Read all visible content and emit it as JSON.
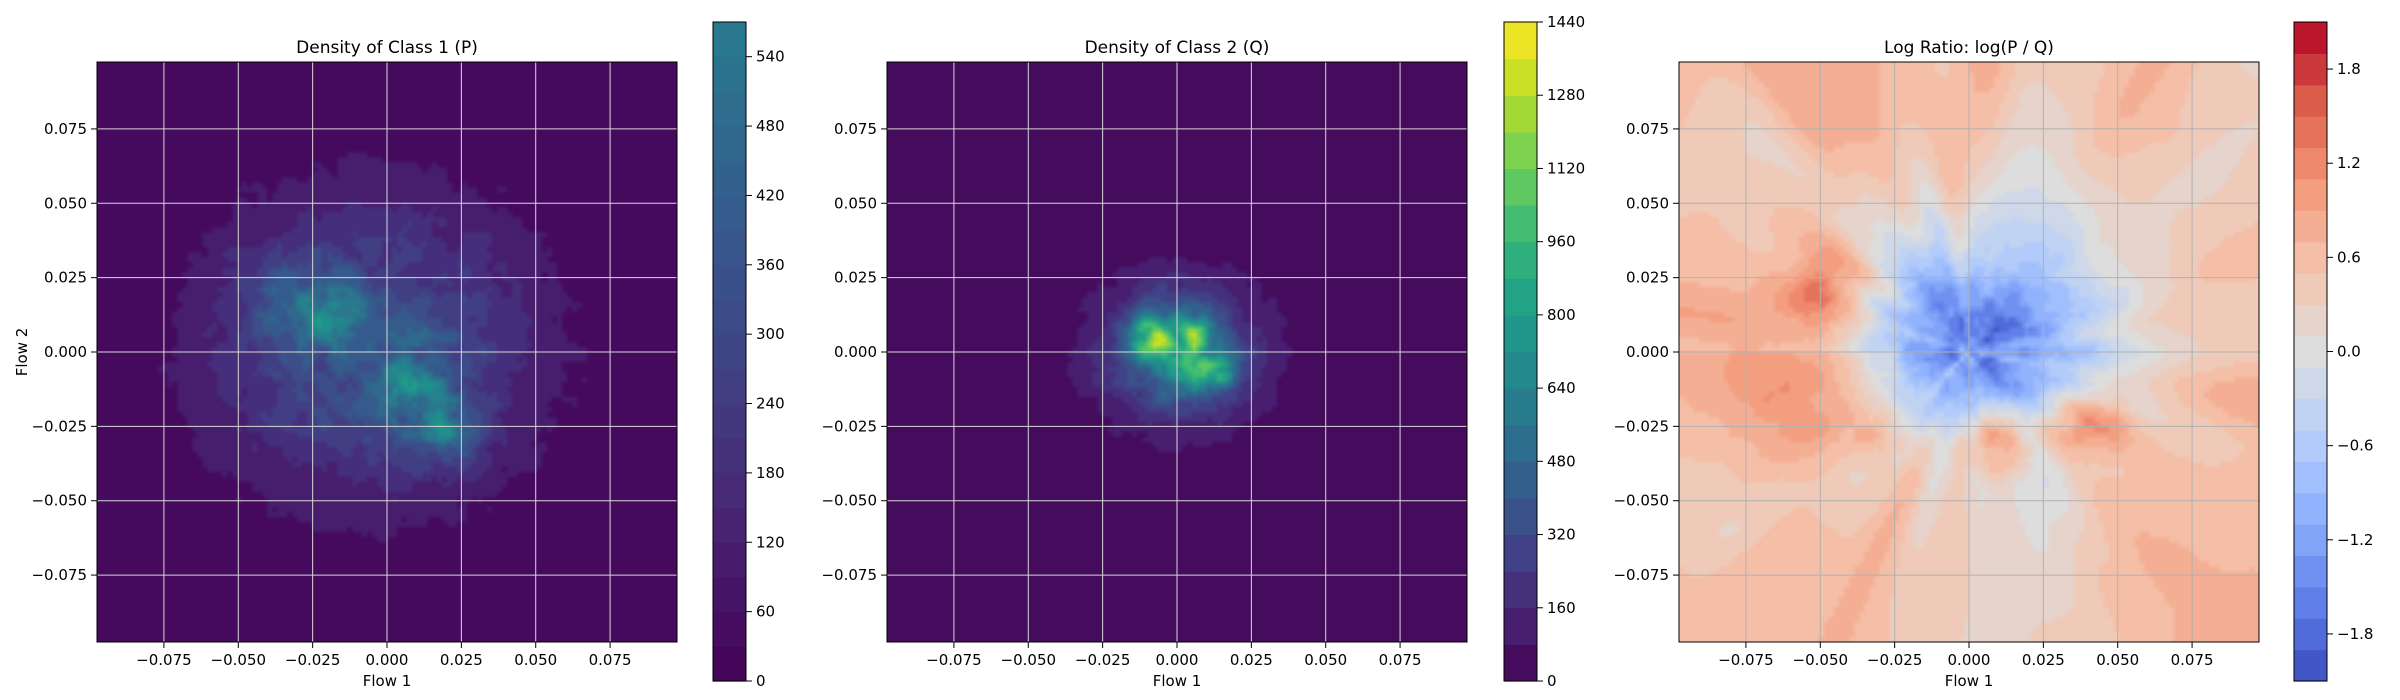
{
  "chart_data": [
    {
      "type": "heatmap",
      "title": "Density of Class 1 (P)",
      "xlabel": "Flow 1",
      "ylabel": "Flow 2",
      "xlim": [
        -0.0975,
        0.0975
      ],
      "ylim": [
        -0.0975,
        0.0975
      ],
      "xticks": [
        "−0.075",
        "−0.050",
        "−0.025",
        "0.000",
        "0.025",
        "0.050",
        "0.075"
      ],
      "yticks": [
        "0.075",
        "0.050",
        "0.025",
        "0.000",
        "−0.025",
        "−0.050",
        "−0.075"
      ],
      "tick_values": [
        -0.075,
        -0.05,
        -0.025,
        0,
        0.025,
        0.05,
        0.075
      ],
      "grid": true,
      "colormap": "viridis",
      "colorbar": {
        "range": [
          0,
          570
        ],
        "ticks": [
          0,
          60,
          120,
          180,
          240,
          300,
          360,
          420,
          480,
          540
        ],
        "tick_labels": [
          "0",
          "60",
          "120",
          "180",
          "240",
          "300",
          "360",
          "420",
          "480",
          "540"
        ],
        "levels": 19,
        "cmap_max_fraction": 0.41
      },
      "density": {
        "blobs": [
          {
            "x": -0.005,
            "y": 0.002,
            "sx": 0.038,
            "sy": 0.035,
            "amp": 150
          },
          {
            "x": -0.02,
            "y": 0.012,
            "sx": 0.008,
            "sy": 0.007,
            "amp": 120
          },
          {
            "x": 0.01,
            "y": -0.012,
            "sx": 0.01,
            "sy": 0.01,
            "amp": 130
          },
          {
            "x": 0.02,
            "y": -0.028,
            "sx": 0.008,
            "sy": 0.007,
            "amp": 120
          },
          {
            "x": -0.035,
            "y": 0.02,
            "sx": 0.01,
            "sy": 0.01,
            "amp": 80
          }
        ]
      }
    },
    {
      "type": "heatmap",
      "title": "Density of Class 2 (Q)",
      "xlabel": "Flow 1",
      "ylabel": "",
      "xlim": [
        -0.0975,
        0.0975
      ],
      "ylim": [
        -0.0975,
        0.0975
      ],
      "xticks": [
        "−0.075",
        "−0.050",
        "−0.025",
        "0.000",
        "0.025",
        "0.050",
        "0.075"
      ],
      "yticks": [
        "0.075",
        "0.050",
        "0.025",
        "0.000",
        "−0.025",
        "−0.050",
        "−0.075"
      ],
      "tick_values": [
        -0.075,
        -0.05,
        -0.025,
        0,
        0.025,
        0.05,
        0.075
      ],
      "grid": true,
      "colormap": "viridis",
      "colorbar": {
        "range": [
          0,
          1440
        ],
        "ticks": [
          0,
          160,
          320,
          480,
          640,
          800,
          960,
          1120,
          1280,
          1440
        ],
        "tick_labels": [
          "0",
          "160",
          "320",
          "480",
          "640",
          "800",
          "960",
          "1120",
          "1280",
          "1440"
        ],
        "levels": 18,
        "cmap_max_fraction": 1.0
      },
      "density": {
        "blobs": [
          {
            "x": 0.0,
            "y": 0.0,
            "sx": 0.019,
            "sy": 0.017,
            "amp": 500
          },
          {
            "x": -0.008,
            "y": 0.005,
            "sx": 0.006,
            "sy": 0.005,
            "amp": 750
          },
          {
            "x": 0.007,
            "y": 0.006,
            "sx": 0.005,
            "sy": 0.005,
            "amp": 600
          },
          {
            "x": 0.014,
            "y": -0.006,
            "sx": 0.005,
            "sy": 0.004,
            "amp": 650
          },
          {
            "x": 0.003,
            "y": -0.008,
            "sx": 0.006,
            "sy": 0.005,
            "amp": 300
          }
        ]
      }
    },
    {
      "type": "heatmap",
      "title": "Log Ratio: log(P / Q)",
      "xlabel": "Flow 1",
      "ylabel": "",
      "xlim": [
        -0.0975,
        0.0975
      ],
      "ylim": [
        -0.0975,
        0.0975
      ],
      "xticks": [
        "−0.075",
        "−0.050",
        "−0.025",
        "0.000",
        "0.025",
        "0.050",
        "0.075"
      ],
      "yticks": [
        "0.075",
        "0.050",
        "0.025",
        "0.000",
        "−0.025",
        "−0.050",
        "−0.075"
      ],
      "tick_values": [
        -0.075,
        -0.05,
        -0.025,
        0,
        0.025,
        0.05,
        0.075
      ],
      "grid": true,
      "colormap": "coolwarm",
      "colorbar": {
        "range": [
          -2.1,
          2.1
        ],
        "ticks": [
          -1.8,
          -1.2,
          -0.6,
          0.0,
          0.6,
          1.2,
          1.8
        ],
        "tick_labels": [
          "−1.8",
          "−1.2",
          "−0.6",
          "0.0",
          "0.6",
          "1.2",
          "1.8"
        ],
        "levels": 21
      },
      "ratio": {
        "background": 0.55,
        "center": {
          "x": 0.003,
          "y": 0.005,
          "sx": 0.028,
          "sy": 0.024,
          "amp": -2.1
        },
        "hot": [
          {
            "x": -0.05,
            "y": 0.02,
            "sx": 0.009,
            "sy": 0.009,
            "amp": 0.9
          },
          {
            "x": 0.04,
            "y": -0.024,
            "sx": 0.01,
            "sy": 0.007,
            "amp": 1.1
          },
          {
            "x": 0.01,
            "y": -0.03,
            "sx": 0.01,
            "sy": 0.007,
            "amp": 1.0
          },
          {
            "x": -0.03,
            "y": -0.028,
            "sx": 0.008,
            "sy": 0.006,
            "amp": 0.7
          },
          {
            "x": -0.06,
            "y": -0.01,
            "sx": 0.02,
            "sy": 0.02,
            "amp": 0.4
          }
        ],
        "cool": [
          {
            "x": 0.02,
            "y": -0.065,
            "sx": 0.01,
            "sy": 0.03,
            "amp": -0.4
          },
          {
            "x": 0.02,
            "y": 0.07,
            "sx": 0.012,
            "sy": 0.03,
            "amp": -0.3
          }
        ]
      }
    }
  ]
}
